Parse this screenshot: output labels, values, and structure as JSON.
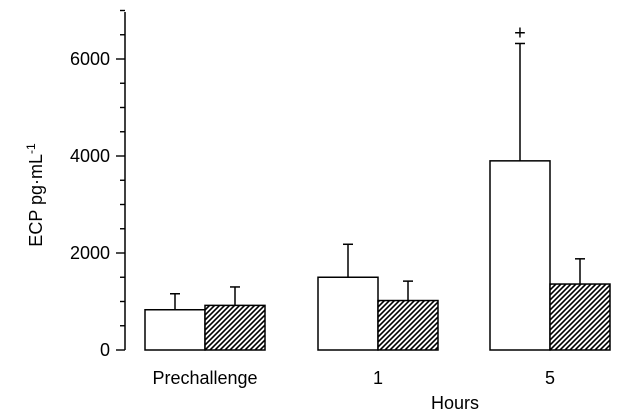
{
  "chart_data": {
    "type": "bar",
    "ylabel": "ECP pg·mL",
    "ylabel_exponent": "-1",
    "xlabel": "Hours",
    "categories": [
      "Prechallenge",
      "1",
      "5"
    ],
    "ylim": [
      0,
      7000
    ],
    "yticks": [
      0,
      2000,
      4000,
      6000
    ],
    "series": [
      {
        "fill": "open",
        "values": [
          830,
          1500,
          3900
        ],
        "error_plus": [
          330,
          680,
          2420
        ]
      },
      {
        "fill": "hatched",
        "values": [
          920,
          1020,
          1360
        ],
        "error_plus": [
          380,
          400,
          520
        ]
      }
    ],
    "annotations": [
      {
        "category": "5",
        "series": 0,
        "text": "+"
      }
    ],
    "grid": false,
    "legend": "none",
    "colors": {
      "bar_outline": "#000000",
      "open_fill": "#ffffff",
      "hatch": "#000000"
    }
  }
}
